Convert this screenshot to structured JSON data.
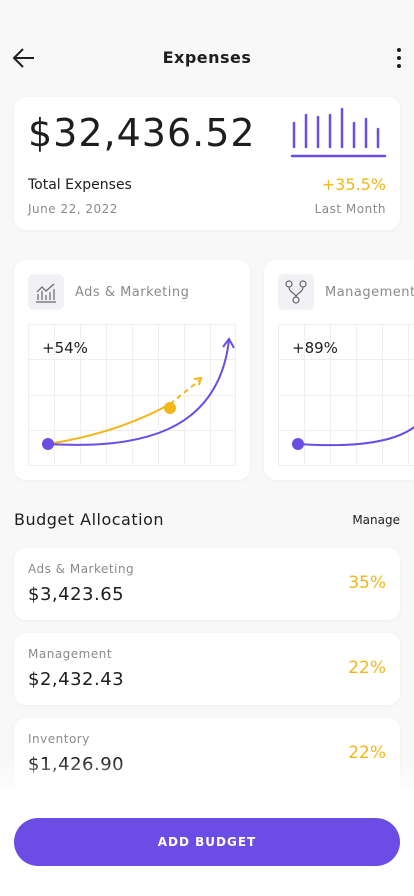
{
  "header": {
    "title": "Expenses"
  },
  "summary": {
    "amount": "$32,436.52",
    "label": "Total Expenses",
    "change": "+35.5%",
    "date": "June 22, 2022",
    "period": "Last Month"
  },
  "cards": [
    {
      "name": "Ads & Marketing",
      "change": "+54%"
    },
    {
      "name": "Management",
      "change": "+89%"
    }
  ],
  "budget": {
    "title": "Budget Allocation",
    "action": "Manage",
    "items": [
      {
        "name": "Ads & Marketing",
        "amount": "$3,423.65",
        "share": "35%"
      },
      {
        "name": "Management",
        "amount": "$2,432.43",
        "share": "22%"
      },
      {
        "name": "Inventory",
        "amount": "$1,426.90",
        "share": "22%"
      }
    ]
  },
  "button": "ADD BUDGET"
}
